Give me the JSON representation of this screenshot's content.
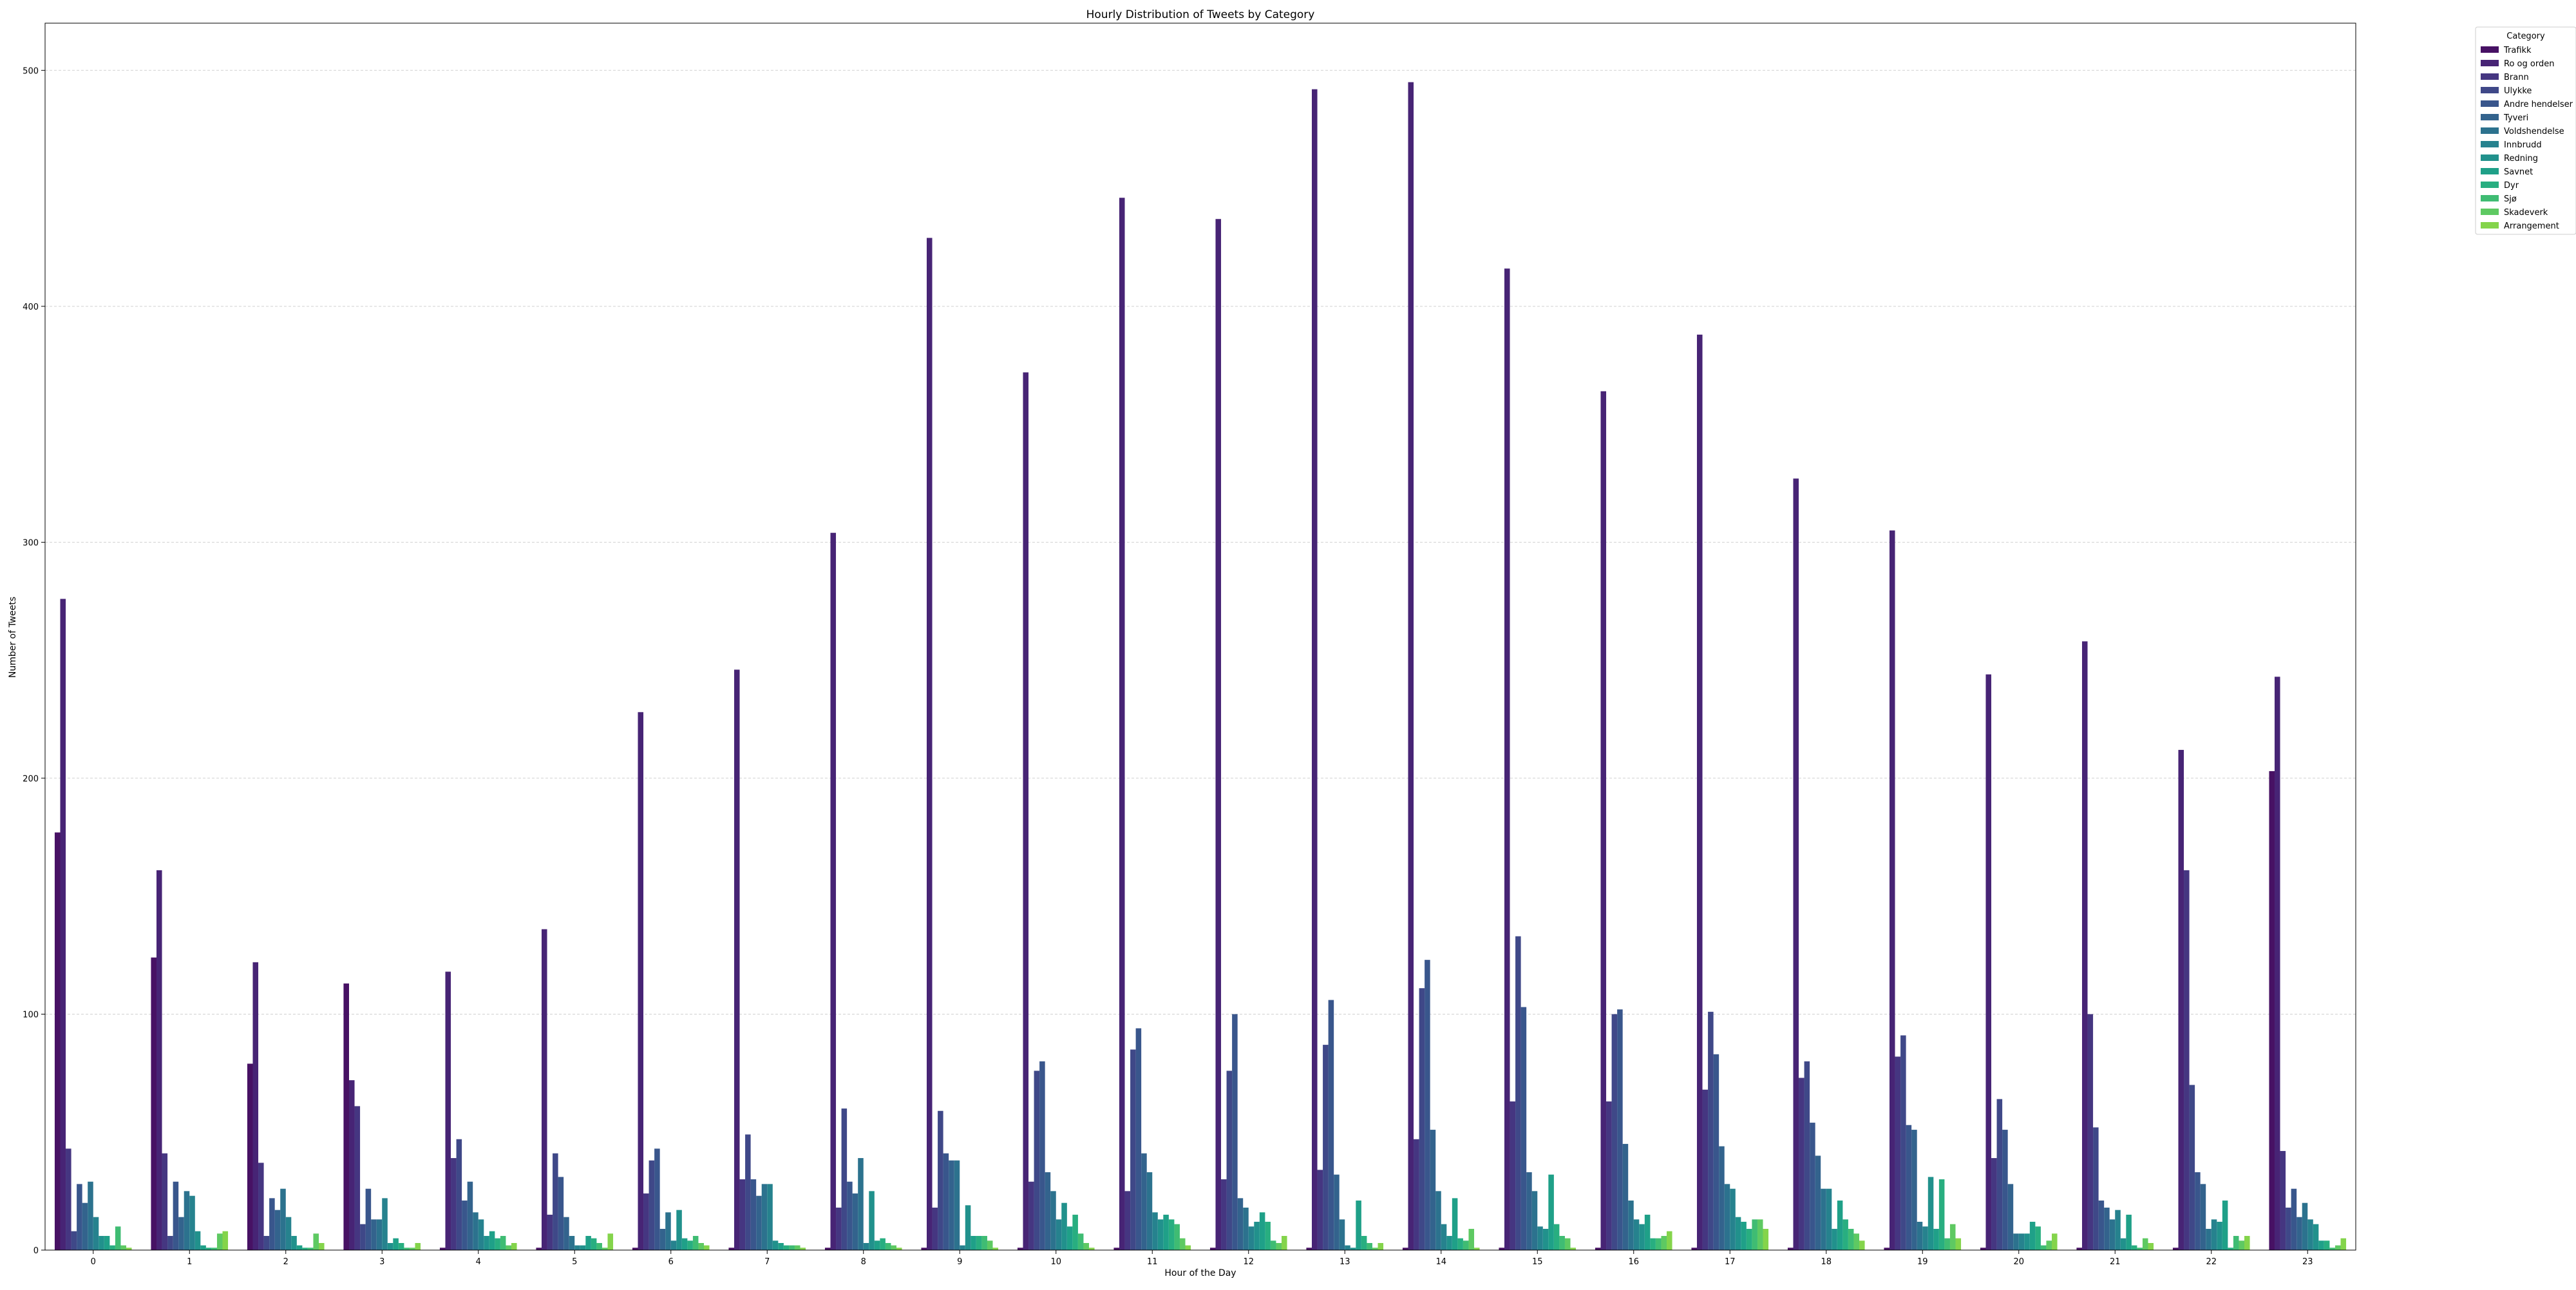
{
  "chart_data": {
    "type": "bar",
    "title": "Hourly Distribution of Tweets by Category",
    "xlabel": "Hour of the Day",
    "ylabel": "Number of Tweets",
    "ylim": [
      0,
      520
    ],
    "yticks": [
      0,
      100,
      200,
      300,
      400,
      500
    ],
    "grid": "horizontal-dashed",
    "legend": {
      "title": "Category",
      "placement": "outside-top-right"
    },
    "categories": [
      "0",
      "1",
      "2",
      "3",
      "4",
      "5",
      "6",
      "7",
      "8",
      "9",
      "10",
      "11",
      "12",
      "13",
      "14",
      "15",
      "16",
      "17",
      "18",
      "19",
      "20",
      "21",
      "22",
      "23"
    ],
    "series": [
      {
        "name": "Trafikk",
        "color": "#471164",
        "values": [
          177,
          124,
          79,
          113,
          1,
          1,
          1,
          1,
          1,
          1,
          1,
          1,
          1,
          1,
          1,
          1,
          1,
          1,
          1,
          1,
          1,
          1,
          1,
          203
        ]
      },
      {
        "name": "Ro og orden",
        "color": "#472475",
        "values": [
          276,
          161,
          122,
          72,
          118,
          136,
          228,
          246,
          304,
          429,
          372,
          446,
          437,
          492,
          495,
          416,
          364,
          388,
          327,
          305,
          244,
          258,
          212,
          243
        ]
      },
      {
        "name": "Brann",
        "color": "#453681",
        "values": [
          43,
          41,
          37,
          61,
          39,
          15,
          24,
          30,
          18,
          18,
          29,
          25,
          30,
          34,
          47,
          63,
          63,
          68,
          73,
          82,
          39,
          100,
          161,
          42
        ]
      },
      {
        "name": "Ulykke",
        "color": "#3f4888",
        "values": [
          8,
          6,
          6,
          11,
          47,
          41,
          38,
          49,
          60,
          59,
          76,
          85,
          76,
          87,
          111,
          133,
          100,
          101,
          80,
          91,
          64,
          52,
          70,
          18
        ]
      },
      {
        "name": "Andre hendelser",
        "color": "#39568c",
        "values": [
          28,
          29,
          22,
          26,
          21,
          31,
          43,
          30,
          29,
          41,
          80,
          94,
          100,
          106,
          123,
          103,
          102,
          83,
          54,
          53,
          51,
          21,
          33,
          26
        ]
      },
      {
        "name": "Tyveri",
        "color": "#33638d",
        "values": [
          20,
          14,
          17,
          13,
          29,
          14,
          9,
          23,
          24,
          38,
          33,
          41,
          22,
          32,
          51,
          33,
          45,
          44,
          40,
          51,
          28,
          18,
          28,
          14
        ]
      },
      {
        "name": "Voldshendelse",
        "color": "#2c728e",
        "values": [
          29,
          25,
          26,
          13,
          16,
          6,
          16,
          28,
          39,
          38,
          25,
          33,
          18,
          13,
          25,
          25,
          21,
          28,
          26,
          12,
          7,
          13,
          9,
          20
        ]
      },
      {
        "name": "Innbrudd",
        "color": "#26828e",
        "values": [
          14,
          23,
          14,
          22,
          13,
          2,
          4,
          28,
          3,
          2,
          13,
          16,
          10,
          2,
          11,
          10,
          13,
          26,
          26,
          10,
          7,
          17,
          13,
          13
        ]
      },
      {
        "name": "Redning",
        "color": "#21918c",
        "values": [
          6,
          8,
          6,
          3,
          6,
          2,
          17,
          4,
          25,
          19,
          20,
          13,
          12,
          1,
          6,
          9,
          11,
          14,
          9,
          31,
          7,
          5,
          12,
          11
        ]
      },
      {
        "name": "Savnet",
        "color": "#1fa088",
        "values": [
          6,
          2,
          2,
          5,
          8,
          6,
          5,
          3,
          4,
          6,
          10,
          15,
          16,
          21,
          22,
          32,
          15,
          12,
          21,
          9,
          12,
          15,
          21,
          4
        ]
      },
      {
        "name": "Dyr",
        "color": "#28ae80",
        "values": [
          2,
          1,
          1,
          3,
          5,
          5,
          4,
          2,
          5,
          6,
          15,
          13,
          12,
          6,
          5,
          11,
          5,
          9,
          13,
          30,
          10,
          2,
          1,
          4
        ]
      },
      {
        "name": "Sjø",
        "color": "#3fbc73",
        "values": [
          10,
          1,
          1,
          1,
          6,
          3,
          6,
          2,
          3,
          6,
          7,
          11,
          4,
          3,
          4,
          6,
          5,
          13,
          9,
          5,
          2,
          1,
          6,
          1
        ]
      },
      {
        "name": "Skadeverk",
        "color": "#5ec962",
        "values": [
          2,
          7,
          7,
          1,
          2,
          1,
          3,
          2,
          2,
          4,
          3,
          5,
          3,
          1,
          9,
          5,
          6,
          13,
          7,
          11,
          4,
          5,
          4,
          2
        ]
      },
      {
        "name": "Arrangement",
        "color": "#84d44b",
        "values": [
          1,
          8,
          3,
          3,
          3,
          7,
          2,
          1,
          1,
          1,
          1,
          2,
          6,
          3,
          1,
          1,
          8,
          9,
          4,
          5,
          7,
          3,
          6,
          5
        ]
      }
    ]
  }
}
